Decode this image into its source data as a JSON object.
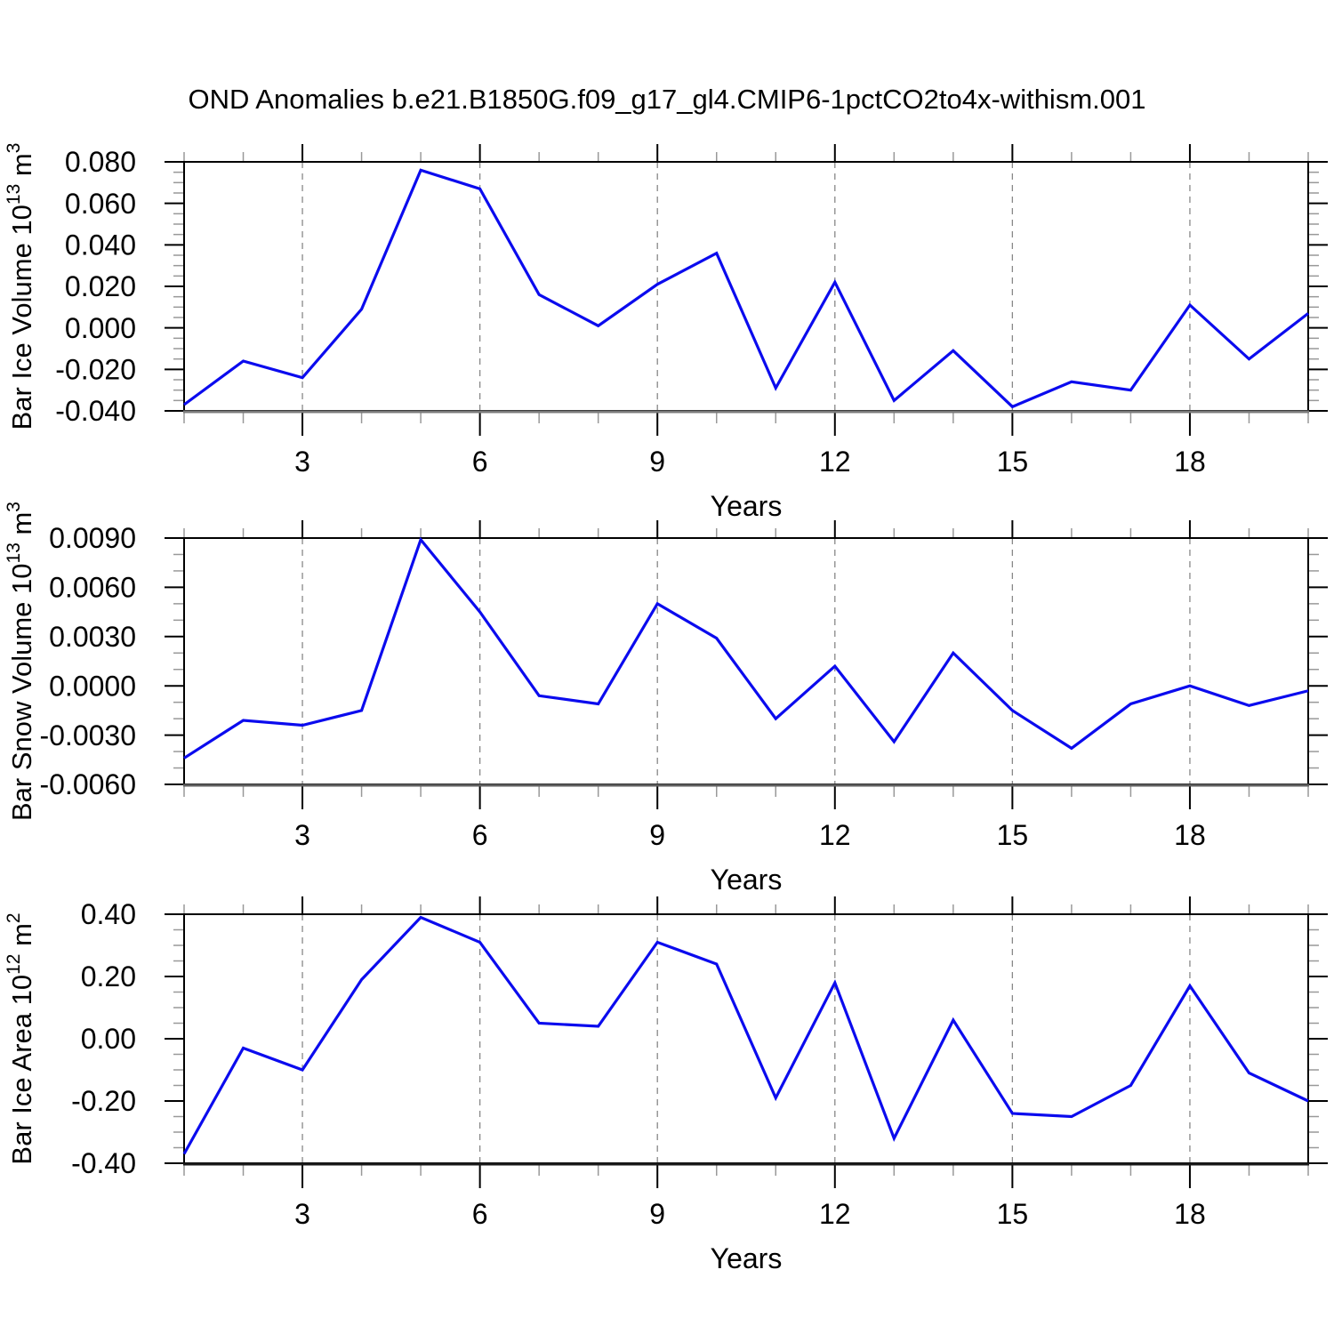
{
  "title": "OND Anomalies b.e21.B1850G.f09_g17_gl4.CMIP6-1pctCO2to4x-withism.001",
  "colors": {
    "line": "#0b0bee",
    "frame": "#000000",
    "major_tick": "#000000",
    "minor_tick": "#999999",
    "grid": "#888888",
    "text": "#000000"
  },
  "chart_data": [
    {
      "type": "line",
      "ylabel_plain": "Bar Ice Volume 10^13 m^3",
      "ylabel_parts": [
        [
          "t",
          "Bar Ice Volume 10"
        ],
        [
          "s",
          "13"
        ],
        [
          "t",
          " m"
        ],
        [
          "s",
          "3"
        ]
      ],
      "xlabel": "Years",
      "x": [
        1,
        2,
        3,
        4,
        5,
        6,
        7,
        8,
        9,
        10,
        11,
        12,
        13,
        14,
        15,
        16,
        17,
        18,
        19,
        20
      ],
      "values": [
        -0.037,
        -0.016,
        -0.024,
        0.009,
        0.076,
        0.067,
        0.016,
        0.001,
        0.021,
        0.036,
        -0.029,
        0.022,
        -0.035,
        -0.011,
        -0.038,
        -0.026,
        -0.03,
        0.011,
        -0.015,
        0.007
      ],
      "xlim": [
        1,
        20
      ],
      "ylim": [
        -0.04,
        0.08
      ],
      "ytick_major": 0.02,
      "ytick_minor": 0.005,
      "ytick_decimals": 3,
      "xtick_major": [
        3,
        6,
        9,
        12,
        15,
        18
      ],
      "xtick_minor_step": 1,
      "grid_x": [
        3,
        6,
        9,
        12,
        15,
        18
      ],
      "grid_style": "dashed",
      "legend": "none",
      "bottom_axis_color": "#7a7a7a"
    },
    {
      "type": "line",
      "ylabel_plain": "Bar Snow Volume 10^13 m^3",
      "ylabel_parts": [
        [
          "t",
          "Bar Snow Volume 10"
        ],
        [
          "s",
          "13"
        ],
        [
          "t",
          " m"
        ],
        [
          "s",
          "3"
        ]
      ],
      "xlabel": "Years",
      "x": [
        1,
        2,
        3,
        4,
        5,
        6,
        7,
        8,
        9,
        10,
        11,
        12,
        13,
        14,
        15,
        16,
        17,
        18,
        19,
        20
      ],
      "values": [
        -0.0044,
        -0.0021,
        -0.0024,
        -0.0015,
        0.0089,
        0.0045,
        -0.0006,
        -0.0011,
        0.005,
        0.0029,
        -0.002,
        0.0012,
        -0.0034,
        0.002,
        -0.0015,
        -0.0038,
        -0.0011,
        0.0,
        -0.0012,
        -0.0003
      ],
      "xlim": [
        1,
        20
      ],
      "ylim": [
        -0.006,
        0.009
      ],
      "ytick_major": 0.003,
      "ytick_minor": 0.001,
      "ytick_decimals": 4,
      "xtick_major": [
        3,
        6,
        9,
        12,
        15,
        18
      ],
      "xtick_minor_step": 1,
      "grid_x": [
        3,
        6,
        9,
        12,
        15,
        18
      ],
      "grid_style": "dashed",
      "legend": "none",
      "bottom_axis_color": "#5f5f5f"
    },
    {
      "type": "line",
      "ylabel_plain": "Bar Ice Area 10^12 m^2",
      "ylabel_parts": [
        [
          "t",
          "Bar Ice Area 10"
        ],
        [
          "s",
          "12"
        ],
        [
          "t",
          " m"
        ],
        [
          "s",
          "2"
        ]
      ],
      "xlabel": "Years",
      "x": [
        1,
        2,
        3,
        4,
        5,
        6,
        7,
        8,
        9,
        10,
        11,
        12,
        13,
        14,
        15,
        16,
        17,
        18,
        19,
        20
      ],
      "values": [
        -0.37,
        -0.03,
        -0.1,
        0.19,
        0.39,
        0.31,
        0.05,
        0.04,
        0.31,
        0.24,
        -0.19,
        0.18,
        -0.32,
        0.06,
        -0.24,
        -0.25,
        -0.15,
        0.17,
        -0.11,
        -0.2
      ],
      "xlim": [
        1,
        20
      ],
      "ylim": [
        -0.4,
        0.4
      ],
      "ytick_major": 0.2,
      "ytick_minor": 0.05,
      "ytick_decimals": 2,
      "xtick_major": [
        3,
        6,
        9,
        12,
        15,
        18
      ],
      "xtick_minor_step": 1,
      "grid_x": [
        3,
        6,
        9,
        12,
        15,
        18
      ],
      "grid_style": "dashed",
      "legend": "none",
      "bottom_axis_color": "#1a1a1a"
    }
  ]
}
